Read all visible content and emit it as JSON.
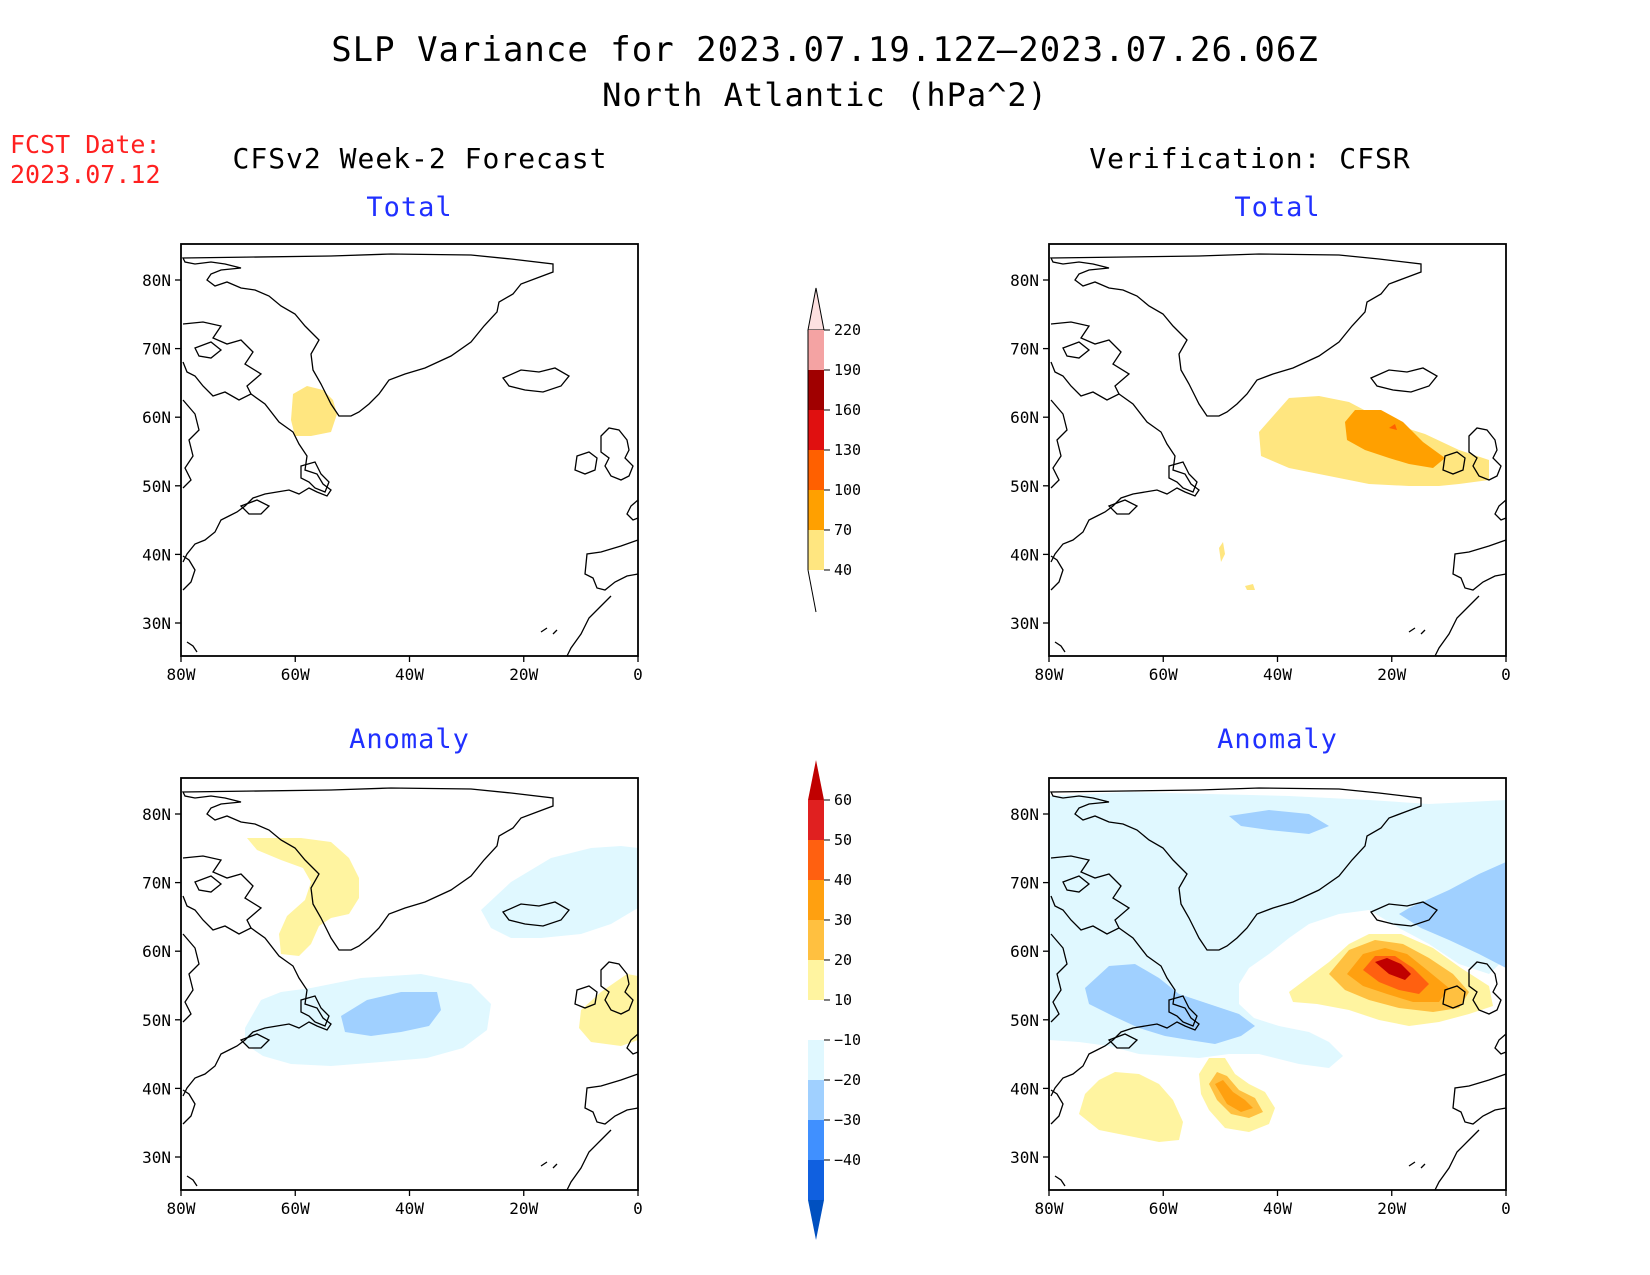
{
  "title": {
    "line1": "SLP Variance for 2023.07.19.12Z—2023.07.26.06Z",
    "line2": "North Atlantic (hPa^2)"
  },
  "fcst_date": {
    "label": "FCST Date:",
    "value": "2023.07.12"
  },
  "columns": {
    "left_title": "CFSv2 Week-2 Forecast",
    "right_title": "Verification: CFSR"
  },
  "panels": {
    "total_label": "Total",
    "anomaly_label": "Anomaly"
  },
  "axes": {
    "lat_ticks": [
      "80N",
      "70N",
      "60N",
      "50N",
      "40N",
      "30N"
    ],
    "lon_ticks": [
      "80W",
      "60W",
      "40W",
      "20W",
      "0"
    ]
  },
  "colorbars": {
    "total": {
      "levels": [
        "220",
        "190",
        "160",
        "130",
        "100",
        "70",
        "40"
      ],
      "colors": [
        "#f4a3a3",
        "#a00000",
        "#e01010",
        "#ff6000",
        "#ffa000",
        "#ffe680"
      ],
      "top_color": "#fde0e0"
    },
    "anomaly": {
      "levels": [
        "60",
        "50",
        "40",
        "30",
        "20",
        "10",
        "−10",
        "−20",
        "−30",
        "−40"
      ],
      "colors": [
        "#c00000",
        "#e02020",
        "#ff6010",
        "#ffa010",
        "#ffc040",
        "#fff4a0",
        "#ffffff",
        "#e0f8ff",
        "#a0d0ff",
        "#4090ff",
        "#1060e0",
        "#0050c0"
      ]
    }
  },
  "map_colors": {
    "pos1": "#ffe680",
    "pos2": "#ffa000",
    "pos3": "#ff6000",
    "pos4": "#e01010",
    "anom_pos1": "#fff4a0",
    "anom_pos2": "#ffc040",
    "anom_pos3": "#ffa010",
    "anom_pos4": "#ff6010",
    "anom_pos5": "#c00000",
    "anom_neg1": "#e0f8ff",
    "anom_neg2": "#a0d0ff"
  }
}
